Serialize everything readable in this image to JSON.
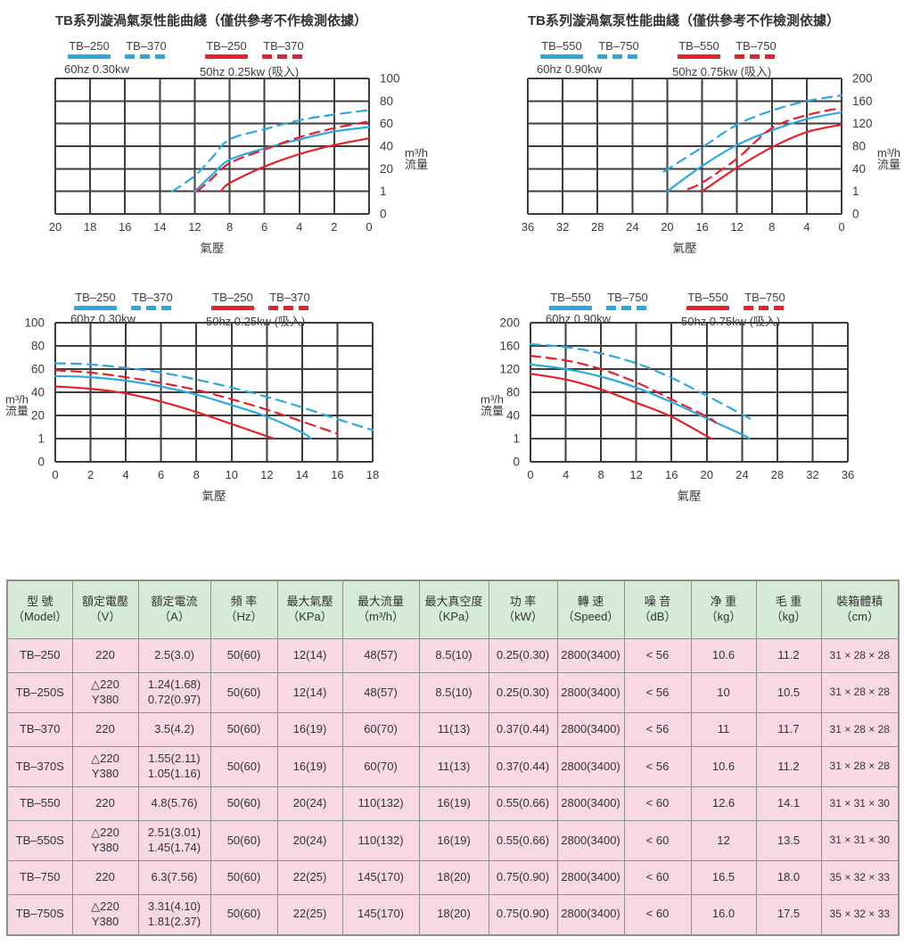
{
  "page": {
    "background": "#ffffff"
  },
  "colors": {
    "blue": "#2aa9e0",
    "red": "#e62129",
    "grid": "#3d3d3d",
    "text": "#3a3a3a",
    "table_header_bg": "#d6ead8",
    "table_row_bg": "#f8d8e2",
    "table_border": "#8f8f8f"
  },
  "chart_data": [
    {
      "type": "line",
      "position": "top-left",
      "title": "TB系列漩渦氣泵性能曲綫（僅供參考不作檢測依據）",
      "legend": [
        {
          "label": "TB–250",
          "color": "blue",
          "dash": false
        },
        {
          "label": "TB–370",
          "color": "blue",
          "dash": true
        },
        {
          "label": "TB–250",
          "color": "red",
          "dash": false
        },
        {
          "label": "TB–370",
          "color": "red",
          "dash": true
        }
      ],
      "condition_labels": [
        "60hz 0.30kw",
        "50hz 0.25kw (吸入)"
      ],
      "xlabel": "氣壓",
      "ylabel": "m³/h 流量",
      "x_reversed": true,
      "x_ticks": [
        20,
        18,
        16,
        14,
        12,
        8,
        6,
        4,
        2,
        0
      ],
      "y_ticks": [
        100,
        80,
        60,
        40,
        20,
        1,
        0
      ],
      "series": [
        {
          "name": "TB–250 60hz",
          "color": "blue",
          "dash": false,
          "points": [
            [
              12,
              1
            ],
            [
              10,
              15
            ],
            [
              8,
              28
            ],
            [
              6,
              38
            ],
            [
              4,
              46
            ],
            [
              2,
              53
            ],
            [
              0,
              57
            ]
          ]
        },
        {
          "name": "TB–250 50hz",
          "color": "red",
          "dash": false,
          "points": [
            [
              9,
              1
            ],
            [
              8,
              8
            ],
            [
              6,
              22
            ],
            [
              4,
              33
            ],
            [
              2,
              41
            ],
            [
              0,
              47
            ]
          ]
        },
        {
          "name": "TB–370 60hz",
          "color": "blue",
          "dash": true,
          "points": [
            [
              13.3,
              1
            ],
            [
              12,
              14
            ],
            [
              10,
              30
            ],
            [
              8,
              46
            ],
            [
              6,
              55
            ],
            [
              4,
              63
            ],
            [
              2,
              68
            ],
            [
              0,
              72
            ]
          ]
        },
        {
          "name": "TB–370 50hz",
          "color": "red",
          "dash": true,
          "points": [
            [
              11.7,
              1
            ],
            [
              10,
              12
            ],
            [
              8,
              25
            ],
            [
              6,
              37
            ],
            [
              4,
              48
            ],
            [
              2,
              56
            ],
            [
              0,
              62
            ]
          ]
        }
      ]
    },
    {
      "type": "line",
      "position": "top-right",
      "title": "TB系列漩渦氣泵性能曲綫（僅供參考不作檢測依據）",
      "legend": [
        {
          "label": "TB–550",
          "color": "blue",
          "dash": false
        },
        {
          "label": "TB–750",
          "color": "blue",
          "dash": true
        },
        {
          "label": "TB–550",
          "color": "red",
          "dash": false
        },
        {
          "label": "TB–750",
          "color": "red",
          "dash": true
        }
      ],
      "condition_labels": [
        "60hz 0.90kw",
        "50hz 0.75kw (吸入)"
      ],
      "xlabel": "氣壓",
      "ylabel": "m³/h 流量",
      "x_reversed": true,
      "x_ticks": [
        36,
        32,
        28,
        24,
        20,
        16,
        12,
        8,
        4,
        0
      ],
      "y_ticks": [
        200,
        160,
        120,
        80,
        40,
        1,
        0
      ],
      "series": [
        {
          "name": "TB–550 60hz",
          "color": "blue",
          "dash": false,
          "points": [
            [
              20,
              1
            ],
            [
              16,
              45
            ],
            [
              12,
              82
            ],
            [
              8,
              108
            ],
            [
              4,
              128
            ],
            [
              0,
              140
            ]
          ]
        },
        {
          "name": "TB–550 50hz",
          "color": "red",
          "dash": false,
          "points": [
            [
              16,
              1
            ],
            [
              12,
              42
            ],
            [
              8,
              78
            ],
            [
              4,
              105
            ],
            [
              0,
              118
            ]
          ]
        },
        {
          "name": "TB–750 60hz",
          "color": "blue",
          "dash": true,
          "points": [
            [
              20.4,
              35
            ],
            [
              16,
              78
            ],
            [
              12,
              118
            ],
            [
              8,
              143
            ],
            [
              4,
              160
            ],
            [
              0,
              170
            ]
          ]
        },
        {
          "name": "TB–750 50hz",
          "color": "red",
          "dash": true,
          "points": [
            [
              17.6,
              5
            ],
            [
              16,
              16
            ],
            [
              12,
              58
            ],
            [
              8,
              112
            ],
            [
              4,
              135
            ],
            [
              0,
              148
            ]
          ]
        }
      ]
    },
    {
      "type": "line",
      "position": "bottom-left",
      "legend": [
        {
          "label": "TB–250",
          "color": "blue",
          "dash": false
        },
        {
          "label": "TB–370",
          "color": "blue",
          "dash": true
        },
        {
          "label": "TB–250",
          "color": "red",
          "dash": false
        },
        {
          "label": "TB–370",
          "color": "red",
          "dash": true
        }
      ],
      "condition_labels": [
        "60hz 0.30kw",
        "50hz 0.25kw (吸入)"
      ],
      "xlabel": "氣壓",
      "ylabel": "m³/h 流量",
      "x_reversed": false,
      "x_ticks": [
        0,
        2,
        4,
        6,
        8,
        10,
        12,
        14,
        16,
        18
      ],
      "y_ticks": [
        100,
        80,
        60,
        40,
        20,
        1,
        0
      ],
      "series": [
        {
          "name": "TB–250 60hz",
          "color": "blue",
          "dash": false,
          "points": [
            [
              0,
              54
            ],
            [
              2,
              53
            ],
            [
              4,
              50
            ],
            [
              6,
              45
            ],
            [
              8,
              38
            ],
            [
              10,
              29
            ],
            [
              12,
              19
            ],
            [
              14,
              6
            ],
            [
              14.5,
              1
            ]
          ]
        },
        {
          "name": "TB–250 50hz",
          "color": "red",
          "dash": false,
          "points": [
            [
              0,
              45
            ],
            [
              2,
              43
            ],
            [
              4,
              39
            ],
            [
              6,
              32
            ],
            [
              8,
              23
            ],
            [
              10,
              13
            ],
            [
              12,
              3
            ],
            [
              12.4,
              1
            ]
          ]
        },
        {
          "name": "TB–370 60hz",
          "color": "blue",
          "dash": true,
          "points": [
            [
              0,
              65
            ],
            [
              2,
              64
            ],
            [
              4,
              61
            ],
            [
              6,
              57
            ],
            [
              8,
              51
            ],
            [
              10,
              44
            ],
            [
              12,
              36
            ],
            [
              14,
              27
            ],
            [
              16,
              17
            ],
            [
              18,
              8
            ]
          ]
        },
        {
          "name": "TB–370 50hz",
          "color": "red",
          "dash": true,
          "points": [
            [
              0,
              59
            ],
            [
              2,
              57
            ],
            [
              4,
              53
            ],
            [
              6,
              48
            ],
            [
              8,
              42
            ],
            [
              10,
              34
            ],
            [
              12,
              25
            ],
            [
              14,
              15
            ],
            [
              16,
              5
            ]
          ]
        }
      ]
    },
    {
      "type": "line",
      "position": "bottom-right",
      "legend": [
        {
          "label": "TB–550",
          "color": "blue",
          "dash": false
        },
        {
          "label": "TB–750",
          "color": "blue",
          "dash": true
        },
        {
          "label": "TB–550",
          "color": "red",
          "dash": false
        },
        {
          "label": "TB–750",
          "color": "red",
          "dash": true
        }
      ],
      "condition_labels": [
        "60hz 0.90kw",
        "50hz 0.75kw (吸入)"
      ],
      "xlabel": "氣壓",
      "ylabel": "m³/h 流量",
      "x_reversed": false,
      "x_ticks": [
        0,
        4,
        8,
        12,
        16,
        20,
        24,
        28,
        32,
        36
      ],
      "y_ticks": [
        200,
        160,
        120,
        80,
        40,
        1,
        0
      ],
      "series": [
        {
          "name": "TB–550 60hz",
          "color": "blue",
          "dash": false,
          "points": [
            [
              0,
              128
            ],
            [
              4,
              120
            ],
            [
              8,
              107
            ],
            [
              12,
              88
            ],
            [
              16,
              63
            ],
            [
              20,
              35
            ],
            [
              24,
              8
            ],
            [
              24.8,
              1
            ]
          ]
        },
        {
          "name": "TB–550 50hz",
          "color": "red",
          "dash": false,
          "points": [
            [
              0,
              112
            ],
            [
              4,
              102
            ],
            [
              8,
              85
            ],
            [
              12,
              62
            ],
            [
              16,
              38
            ],
            [
              20,
              5
            ],
            [
              20.6,
              1
            ]
          ]
        },
        {
          "name": "TB–750 60hz",
          "color": "blue",
          "dash": true,
          "points": [
            [
              0,
              163
            ],
            [
              4,
              158
            ],
            [
              8,
              147
            ],
            [
              12,
              130
            ],
            [
              16,
              105
            ],
            [
              20,
              74
            ],
            [
              24,
              42
            ],
            [
              25.5,
              30
            ]
          ]
        },
        {
          "name": "TB–750 50hz",
          "color": "red",
          "dash": true,
          "points": [
            [
              0,
              143
            ],
            [
              4,
              135
            ],
            [
              8,
              120
            ],
            [
              12,
              97
            ],
            [
              16,
              68
            ],
            [
              20,
              38
            ],
            [
              21,
              28
            ]
          ]
        }
      ]
    }
  ],
  "table": {
    "headers": [
      "型 號\n（Model）",
      "額定電壓\n（V）",
      "額定電流\n（A）",
      "頻 率\n（Hz）",
      "最大氣壓\n（KPa）",
      "最大流量\n（m³/h）",
      "最大真空度\n（KPa）",
      "功 率\n（kW）",
      "轉 速\n（Speed）",
      "噪 音\n（dB）",
      "净 重\n（kg）",
      "毛 重\n（kg）",
      "裝箱體積\n（cm）"
    ],
    "rows": [
      [
        "TB–250",
        "220",
        "2.5(3.0)",
        "50(60)",
        "12(14)",
        "48(57)",
        "8.5(10)",
        "0.25(0.30)",
        "2800(3400)",
        "< 56",
        "10.6",
        "11.2",
        "31 × 28 × 28"
      ],
      [
        "TB–250S",
        "△220\nY380",
        "1.24(1.68)\n0.72(0.97)",
        "50(60)",
        "12(14)",
        "48(57)",
        "8.5(10)",
        "0.25(0.30)",
        "2800(3400)",
        "< 56",
        "10",
        "10.5",
        "31 × 28 × 28"
      ],
      [
        "TB–370",
        "220",
        "3.5(4.2)",
        "50(60)",
        "16(19)",
        "60(70)",
        "11(13)",
        "0.37(0.44)",
        "2800(3400)",
        "< 56",
        "11",
        "11.7",
        "31 × 28 × 28"
      ],
      [
        "TB–370S",
        "△220\nY380",
        "1.55(2.11)\n1.05(1.16)",
        "50(60)",
        "16(19)",
        "60(70)",
        "11(13)",
        "0.37(0.44)",
        "2800(3400)",
        "< 56",
        "10.6",
        "11.2",
        "31 × 28 × 28"
      ],
      [
        "TB–550",
        "220",
        "4.8(5.76)",
        "50(60)",
        "20(24)",
        "110(132)",
        "16(19)",
        "0.55(0.66)",
        "2800(3400)",
        "< 60",
        "12.6",
        "14.1",
        "31 × 31 × 30"
      ],
      [
        "TB–550S",
        "△220\nY380",
        "2.51(3.01)\n1.45(1.74)",
        "50(60)",
        "20(24)",
        "110(132)",
        "16(19)",
        "0.55(0.66)",
        "2800(3400)",
        "< 60",
        "12",
        "13.5",
        "31 × 31 × 30"
      ],
      [
        "TB–750",
        "220",
        "6.3(7.56)",
        "50(60)",
        "22(25)",
        "145(170)",
        "18(20)",
        "0.75(0.90)",
        "2800(3400)",
        "< 60",
        "16.5",
        "18.0",
        "35 × 32 × 33"
      ],
      [
        "TB–750S",
        "△220\nY380",
        "3.31(4.10)\n1.81(2.37)",
        "50(60)",
        "22(25)",
        "145(170)",
        "18(20)",
        "0.75(0.90)",
        "2800(3400)",
        "< 60",
        "16.0",
        "17.5",
        "35 × 32 × 33"
      ]
    ]
  }
}
